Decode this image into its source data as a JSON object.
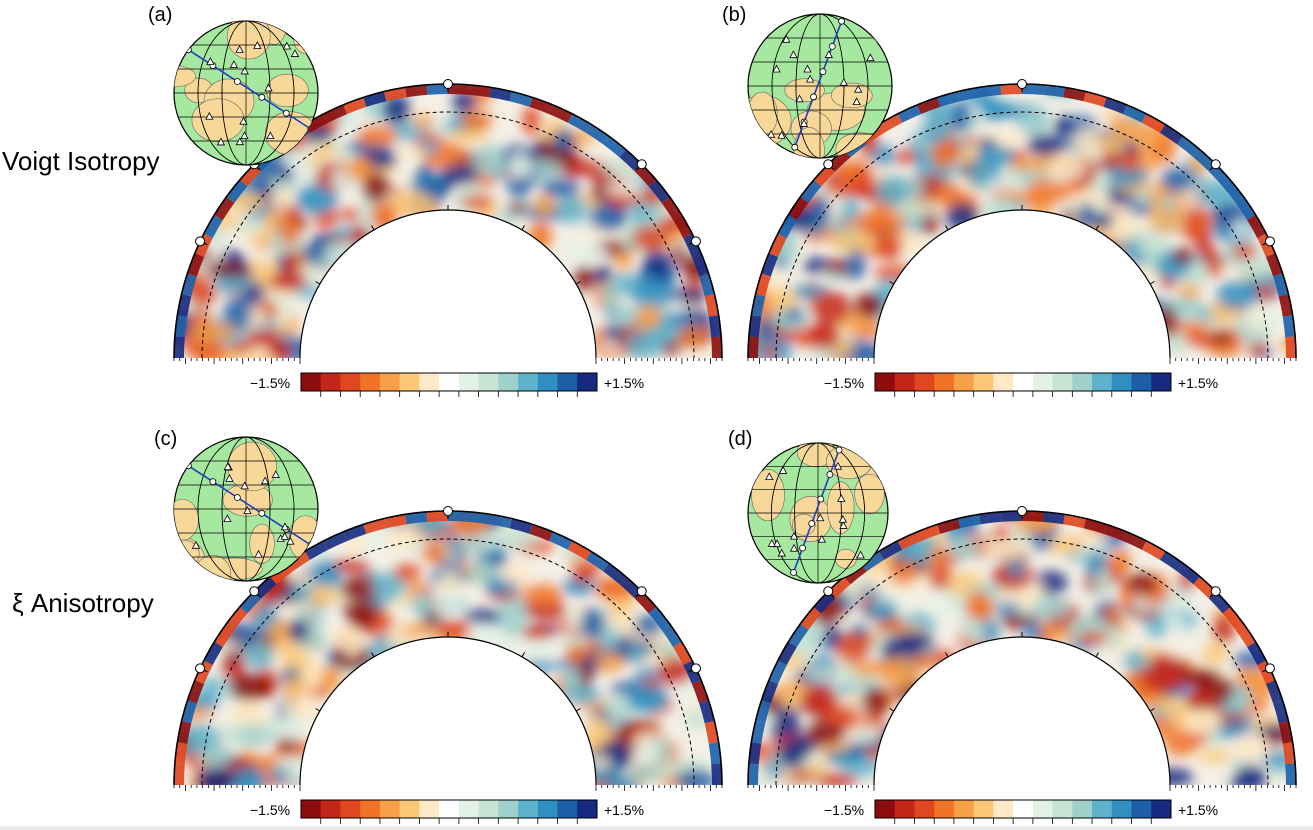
{
  "row_labels": {
    "top": "Voigt Isotropy",
    "bottom": "ξ Anisotropy"
  },
  "panels": [
    {
      "id": "a",
      "label": "(a)",
      "section_side": "left"
    },
    {
      "id": "b",
      "label": "(b)",
      "section_side": "right"
    },
    {
      "id": "c",
      "label": "(c)",
      "section_side": "left"
    },
    {
      "id": "d",
      "label": "(d)",
      "section_side": "right"
    }
  ],
  "colorbar": {
    "min_label": "−1.5%",
    "max_label": "+1.5%",
    "colors": [
      "#8b0d0d",
      "#c4261a",
      "#e0461f",
      "#f07326",
      "#f7a047",
      "#fbc878",
      "#fde9c6",
      "#ffffff",
      "#e4f2e6",
      "#c6e3d4",
      "#9fd0cc",
      "#5fb2cb",
      "#2f8fc1",
      "#1c5fa8",
      "#162b7f"
    ]
  },
  "colors": {
    "globe_land": "#f8d898",
    "globe_ocean": "#a6e89f",
    "path_line": "#1f3fbf"
  },
  "icons": [
    "station-triangle-icon",
    "path-point-circle-icon",
    "globe-icon"
  ]
}
